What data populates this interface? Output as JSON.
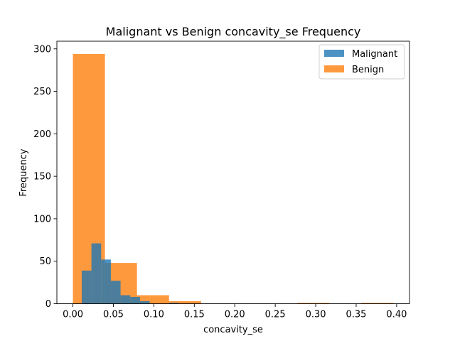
{
  "chart_data": {
    "type": "histogram",
    "title": "Malignant vs Benign concavity_se Frequency",
    "xlabel": "concavity_se",
    "ylabel": "Frequency",
    "xlim": [
      -0.0198,
      0.4159
    ],
    "ylim": [
      0,
      309
    ],
    "xticks": [
      0.0,
      0.05,
      0.1,
      0.15,
      0.2,
      0.25,
      0.3,
      0.35,
      0.4
    ],
    "xtick_labels": [
      "0.00",
      "0.05",
      "0.10",
      "0.15",
      "0.20",
      "0.25",
      "0.30",
      "0.35",
      "0.40"
    ],
    "yticks": [
      0,
      50,
      100,
      150,
      200,
      250,
      300
    ],
    "ytick_labels": [
      "0",
      "50",
      "100",
      "150",
      "200",
      "250",
      "300"
    ],
    "legend_position": "top-right",
    "colors": {
      "Malignant": "#1f77b4",
      "Benign": "#ff7f0e",
      "overlap": "#b06839"
    },
    "series": [
      {
        "name": "Malignant",
        "bin_edges": [
          0.0109,
          0.0229,
          0.0349,
          0.0469,
          0.0589,
          0.0709,
          0.0829,
          0.0949,
          0.1069,
          0.1189,
          0.1309
        ],
        "counts": [
          39,
          71,
          52,
          27,
          10,
          8,
          3,
          0,
          0,
          1
        ]
      },
      {
        "name": "Benign",
        "bin_edges": [
          0.0,
          0.0396,
          0.0792,
          0.1188,
          0.1584,
          0.198,
          0.2376,
          0.2772,
          0.3168,
          0.3564,
          0.396
        ],
        "counts": [
          294,
          48,
          10,
          3,
          0,
          0,
          0,
          1,
          0,
          1
        ]
      }
    ]
  }
}
